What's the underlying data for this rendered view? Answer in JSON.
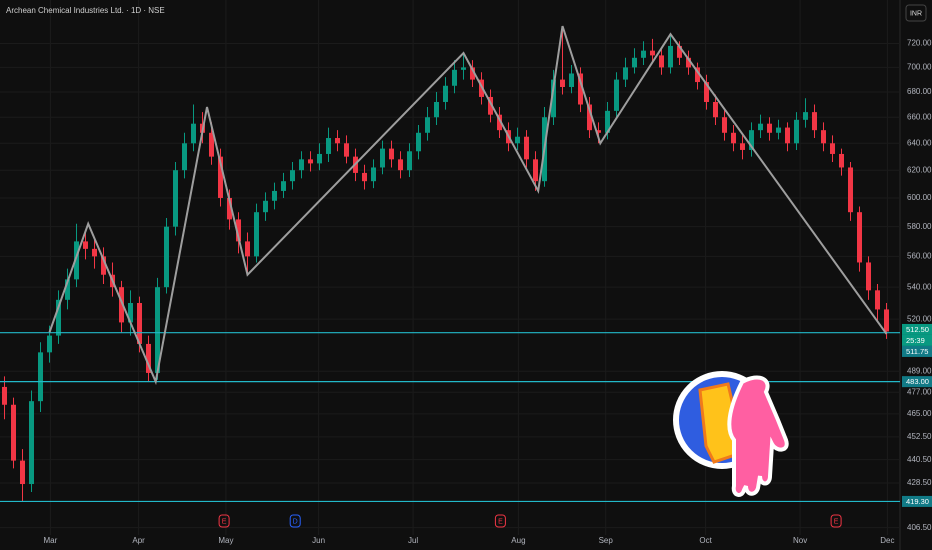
{
  "chart_data": {
    "type": "candlestick",
    "title": "Archean Chemical Industries Ltd. · 1D · NSE",
    "currency": "INR",
    "log_scale": true,
    "grid": true,
    "up_color": "#089981",
    "down_color": "#f23645",
    "open": [
      480,
      470,
      440,
      428,
      472,
      500,
      510,
      532,
      545,
      570,
      565,
      560,
      548,
      540,
      518,
      530,
      505,
      488,
      540,
      580,
      620,
      640,
      655,
      648,
      630,
      600,
      585,
      570,
      560,
      590,
      598,
      605,
      612,
      620,
      628,
      625,
      632,
      644,
      640,
      630,
      618,
      612,
      622,
      636,
      628,
      620,
      634,
      648,
      660,
      672,
      685,
      698,
      700,
      690,
      676,
      662,
      650,
      640,
      645,
      628,
      612,
      660,
      690,
      684,
      695,
      670,
      650,
      648,
      665,
      690,
      700,
      708,
      714,
      710,
      700,
      718,
      708,
      700,
      688,
      672,
      660,
      648,
      640,
      635,
      650,
      655,
      648,
      652,
      640,
      658,
      664,
      650,
      640,
      632,
      622,
      590,
      556,
      538,
      526
    ],
    "high": [
      486,
      474,
      446,
      478,
      506,
      516,
      538,
      552,
      582,
      576,
      572,
      566,
      556,
      544,
      538,
      534,
      510,
      546,
      586,
      626,
      648,
      670,
      664,
      656,
      636,
      606,
      590,
      576,
      596,
      604,
      611,
      618,
      626,
      634,
      634,
      640,
      652,
      650,
      646,
      636,
      624,
      628,
      642,
      642,
      634,
      640,
      654,
      668,
      680,
      692,
      706,
      712,
      706,
      696,
      682,
      668,
      656,
      652,
      650,
      634,
      668,
      698,
      735,
      702,
      700,
      676,
      656,
      672,
      696,
      708,
      716,
      722,
      724,
      716,
      728,
      722,
      714,
      704,
      694,
      678,
      666,
      654,
      646,
      656,
      662,
      660,
      658,
      656,
      664,
      675,
      670,
      656,
      646,
      636,
      626,
      594,
      560,
      542,
      530
    ],
    "low": [
      462,
      436,
      419,
      424,
      466,
      494,
      505,
      526,
      540,
      558,
      552,
      542,
      534,
      512,
      510,
      500,
      483,
      484,
      536,
      574,
      614,
      634,
      640,
      624,
      594,
      578,
      562,
      548,
      556,
      584,
      592,
      600,
      606,
      614,
      619,
      620,
      626,
      634,
      625,
      612,
      606,
      607,
      617,
      622,
      614,
      615,
      628,
      642,
      654,
      666,
      679,
      690,
      684,
      670,
      656,
      644,
      634,
      635,
      622,
      605,
      608,
      654,
      678,
      679,
      664,
      644,
      640,
      643,
      660,
      684,
      695,
      702,
      704,
      694,
      695,
      702,
      694,
      682,
      666,
      654,
      642,
      634,
      628,
      630,
      644,
      642,
      643,
      634,
      635,
      652,
      644,
      634,
      626,
      616,
      584,
      550,
      532,
      518,
      508
    ],
    "close": [
      470,
      440,
      428,
      472,
      500,
      510,
      532,
      545,
      570,
      565,
      560,
      548,
      540,
      518,
      530,
      505,
      488,
      540,
      580,
      620,
      640,
      655,
      648,
      630,
      600,
      585,
      570,
      560,
      590,
      598,
      605,
      612,
      620,
      628,
      625,
      632,
      644,
      640,
      630,
      618,
      612,
      622,
      636,
      628,
      620,
      634,
      648,
      660,
      672,
      685,
      698,
      700,
      690,
      676,
      662,
      650,
      640,
      645,
      628,
      612,
      660,
      690,
      684,
      695,
      670,
      650,
      648,
      665,
      690,
      700,
      708,
      714,
      710,
      700,
      718,
      708,
      700,
      688,
      672,
      660,
      648,
      640,
      635,
      650,
      655,
      648,
      652,
      640,
      658,
      664,
      650,
      640,
      632,
      622,
      590,
      556,
      538,
      526,
      512.5
    ],
    "zigzag": {
      "color": "#9e9e9e",
      "x": [
        5,
        9.3,
        16.8,
        22.5,
        27,
        51,
        59.3,
        62,
        66.2,
        74,
        98
      ],
      "values": [
        512,
        582,
        483,
        668,
        548,
        712,
        605,
        735,
        640,
        728,
        511
      ]
    },
    "xlim": [
      -0.5,
      99.5
    ],
    "xticks": [
      {
        "value": 5.1,
        "label": "Mar"
      },
      {
        "value": 14.9,
        "label": "Apr"
      },
      {
        "value": 24.6,
        "label": "May"
      },
      {
        "value": 34.9,
        "label": "Jun"
      },
      {
        "value": 45.4,
        "label": "Jul"
      },
      {
        "value": 57.1,
        "label": "Aug"
      },
      {
        "value": 66.8,
        "label": "Sep"
      },
      {
        "value": 77.9,
        "label": "Oct"
      },
      {
        "value": 88.4,
        "label": "Nov"
      },
      {
        "value": 98.1,
        "label": "Dec"
      }
    ],
    "ylim": [
      403,
      758
    ],
    "yticks": [
      {
        "value": 720,
        "label": "720.00"
      },
      {
        "value": 700,
        "label": "700.00"
      },
      {
        "value": 680,
        "label": "680.00"
      },
      {
        "value": 660,
        "label": "660.00"
      },
      {
        "value": 640,
        "label": "640.00"
      },
      {
        "value": 620,
        "label": "620.00"
      },
      {
        "value": 600,
        "label": "600.00"
      },
      {
        "value": 580,
        "label": "580.00"
      },
      {
        "value": 560,
        "label": "560.00"
      },
      {
        "value": 540,
        "label": "540.00"
      },
      {
        "value": 520,
        "label": "520.00"
      },
      {
        "value": 489,
        "label": "489.00"
      },
      {
        "value": 477,
        "label": "477.00"
      },
      {
        "value": 465,
        "label": "465.00"
      },
      {
        "value": 452.5,
        "label": "452.50"
      },
      {
        "value": 440.5,
        "label": "440.50"
      },
      {
        "value": 428.5,
        "label": "428.50"
      },
      {
        "value": 406.5,
        "label": "406.50"
      }
    ],
    "last_price": {
      "value": 512.5,
      "label": "512.50"
    },
    "countdown": "25:39",
    "price_lines": [
      {
        "value": 511.75,
        "label": "511.75"
      },
      {
        "value": 483,
        "label": "483.00"
      },
      {
        "value": 419.3,
        "label": "419.30"
      }
    ],
    "line_color": "#22b8c8",
    "events": [
      "E",
      "D",
      "E",
      "E"
    ]
  }
}
